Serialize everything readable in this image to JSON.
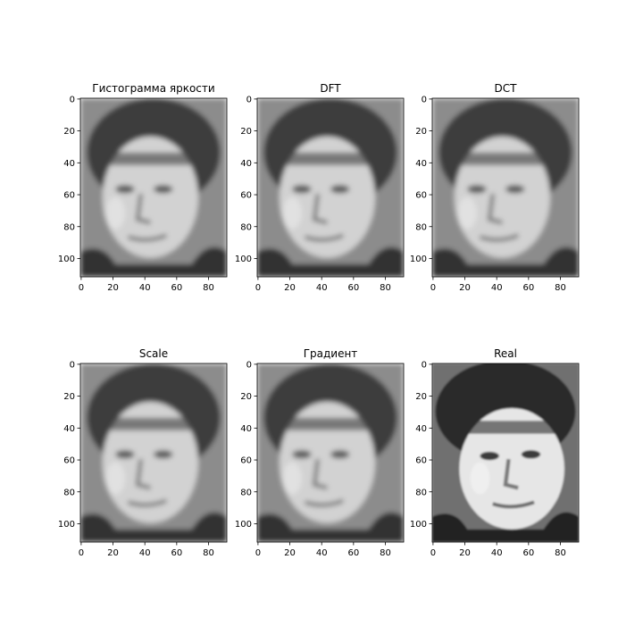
{
  "chart_data": [
    {
      "type": "image",
      "title": "Гистограмма яркости",
      "xlim": [
        -0.5,
        91.5
      ],
      "ylim": [
        111.5,
        -0.5
      ],
      "xticks": [
        0,
        20,
        40,
        60,
        80
      ],
      "yticks": [
        0,
        20,
        40,
        60,
        80,
        100
      ]
    },
    {
      "type": "image",
      "title": "DFT",
      "xlim": [
        -0.5,
        91.5
      ],
      "ylim": [
        111.5,
        -0.5
      ],
      "xticks": [
        0,
        20,
        40,
        60,
        80
      ],
      "yticks": [
        0,
        20,
        40,
        60,
        80,
        100
      ]
    },
    {
      "type": "image",
      "title": "DCT",
      "xlim": [
        -0.5,
        91.5
      ],
      "ylim": [
        111.5,
        -0.5
      ],
      "xticks": [
        0,
        20,
        40,
        60,
        80
      ],
      "yticks": [
        0,
        20,
        40,
        60,
        80,
        100
      ]
    },
    {
      "type": "image",
      "title": "Scale",
      "xlim": [
        -0.5,
        91.5
      ],
      "ylim": [
        111.5,
        -0.5
      ],
      "xticks": [
        0,
        20,
        40,
        60,
        80
      ],
      "yticks": [
        0,
        20,
        40,
        60,
        80,
        100
      ]
    },
    {
      "type": "image",
      "title": "Градиент",
      "xlim": [
        -0.5,
        91.5
      ],
      "ylim": [
        111.5,
        -0.5
      ],
      "xticks": [
        0,
        20,
        40,
        60,
        80
      ],
      "yticks": [
        0,
        20,
        40,
        60,
        80,
        100
      ]
    },
    {
      "type": "image",
      "title": "Real",
      "xlim": [
        -0.5,
        91.5
      ],
      "ylim": [
        111.5,
        -0.5
      ],
      "xticks": [
        0,
        20,
        40,
        60,
        80
      ],
      "yticks": [
        0,
        20,
        40,
        60,
        80,
        100
      ]
    }
  ]
}
